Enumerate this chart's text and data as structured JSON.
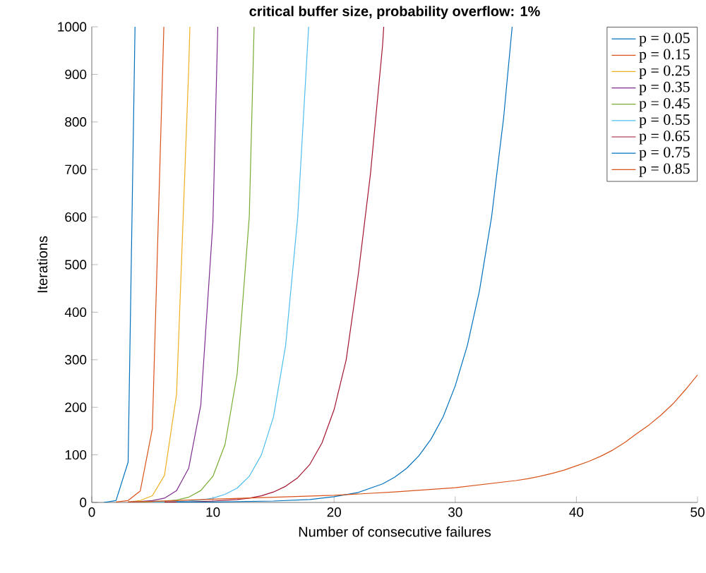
{
  "chart_data": {
    "type": "line",
    "title": "critical buffer size, probability overflow: 1%",
    "xlabel": "Number of consecutive failures",
    "ylabel": "Iterations",
    "xlim": [
      0,
      50
    ],
    "ylim": [
      0,
      1000
    ],
    "xticks": [
      0,
      10,
      20,
      30,
      40,
      50
    ],
    "yticks": [
      0,
      100,
      200,
      300,
      400,
      500,
      600,
      700,
      800,
      900,
      1000
    ],
    "legend": "top right",
    "grid": false,
    "marker": "none",
    "line_style": "solid",
    "series": [
      {
        "name": "p = 0.05",
        "color": "#0072bd",
        "x": [
          1,
          2,
          3,
          3.57
        ],
        "values": [
          0,
          4,
          85,
          1000
        ]
      },
      {
        "name": "p = 0.15",
        "color": "#d95319",
        "x": [
          2,
          3,
          4,
          5,
          5.95
        ],
        "values": [
          1,
          4,
          24,
          155,
          1000
        ]
      },
      {
        "name": "p = 0.25",
        "color": "#edb120",
        "x": [
          3,
          4,
          5,
          6,
          7,
          8,
          8.1
        ],
        "values": [
          1,
          4,
          14,
          57,
          228,
          912,
          1000
        ]
      },
      {
        "name": "p = 0.35",
        "color": "#7e2f8e",
        "x": [
          3,
          4,
          5,
          6,
          7,
          8,
          9,
          10,
          10.4
        ],
        "values": [
          1,
          2,
          4,
          9,
          25,
          72,
          205,
          590,
          1000
        ]
      },
      {
        "name": "p = 0.45",
        "color": "#77ac30",
        "x": [
          4,
          5,
          6,
          7,
          8,
          9,
          10,
          11,
          12,
          13,
          13.4
        ],
        "values": [
          1,
          2,
          3,
          5,
          11,
          25,
          55,
          122,
          270,
          600,
          1000
        ]
      },
      {
        "name": "p = 0.55",
        "color": "#4dbeee",
        "x": [
          5,
          6,
          7,
          8,
          9,
          10,
          11,
          12,
          13,
          14,
          15,
          16,
          17,
          17.9
        ],
        "values": [
          1,
          1,
          2,
          3,
          5,
          9,
          17,
          30,
          55,
          100,
          180,
          330,
          600,
          1000
        ]
      },
      {
        "name": "p = 0.65",
        "color": "#a2142f",
        "x": [
          6,
          8,
          10,
          12,
          13,
          14,
          15,
          16,
          17,
          18,
          19,
          20,
          21,
          22,
          23,
          24,
          24.1
        ],
        "values": [
          1,
          1,
          3,
          6,
          9,
          14,
          22,
          34,
          52,
          80,
          125,
          195,
          300,
          480,
          690,
          960,
          1000
        ]
      },
      {
        "name": "p = 0.75",
        "color": "#0072bd",
        "x": [
          7,
          10,
          15,
          18,
          20,
          22,
          24,
          25,
          26,
          27,
          28,
          29,
          30,
          31,
          32,
          33,
          34,
          34.7
        ],
        "values": [
          1,
          1,
          3,
          6,
          12,
          21,
          39,
          53,
          72,
          98,
          133,
          180,
          245,
          330,
          445,
          600,
          810,
          1000
        ]
      },
      {
        "name": "p = 0.85",
        "color": "#d95319",
        "x": [
          3,
          5,
          10,
          15,
          20,
          25,
          30,
          35,
          36,
          37,
          38,
          39,
          40,
          41,
          42,
          43,
          44,
          45,
          46,
          47,
          48,
          49,
          50
        ],
        "values": [
          1,
          2,
          7,
          11,
          15,
          22,
          31,
          46,
          50,
          55,
          61,
          68,
          77,
          86,
          97,
          110,
          126,
          145,
          163,
          184,
          208,
          237,
          268
        ]
      }
    ]
  }
}
